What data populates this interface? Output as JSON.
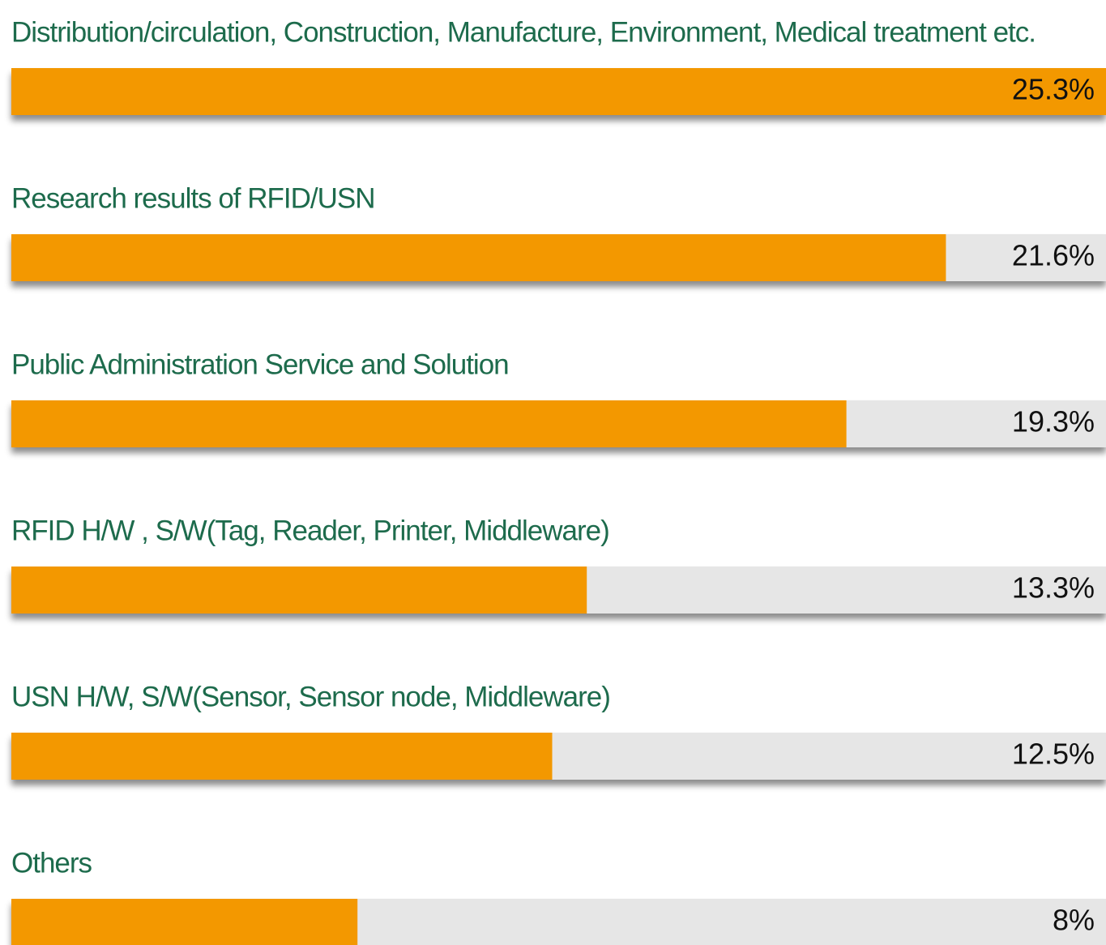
{
  "chart_data": {
    "type": "bar",
    "categories": [
      "Distribution/circulation, Construction, Manufacture, Environment, Medical treatment etc.",
      "Research results of RFID/USN",
      "Public Administration Service and Solution",
      "RFID  H/W , S/W(Tag, Reader, Printer, Middleware)",
      "USN  H/W, S/W(Sensor, Sensor node, Middleware)",
      "Others"
    ],
    "values": [
      25.3,
      21.6,
      19.3,
      13.3,
      12.5,
      8
    ],
    "value_labels": [
      "25.3%",
      "21.6%",
      "19.3%",
      "13.3%",
      "12.5%",
      "8%"
    ],
    "color": "#f39800",
    "track_color": "#e6e6e6",
    "label_color": "#1d6b4c"
  }
}
